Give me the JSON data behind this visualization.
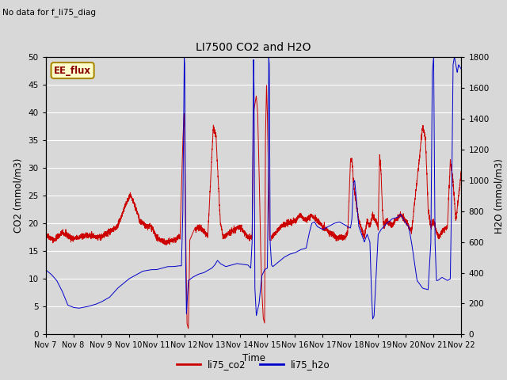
{
  "title": "LI7500 CO2 and H2O",
  "top_left_text": "No data for f_li75_diag",
  "box_label": "EE_flux",
  "xlabel": "Time",
  "ylabel_left": "CO2 (mmol/m3)",
  "ylabel_right": "H2O (mmol/m3)",
  "ylim_left": [
    0,
    50
  ],
  "ylim_right": [
    0,
    1800
  ],
  "x_start": 7,
  "x_end": 22,
  "x_ticks": [
    7,
    8,
    9,
    10,
    11,
    12,
    13,
    14,
    15,
    16,
    17,
    18,
    19,
    20,
    21,
    22
  ],
  "x_tick_labels": [
    "Nov 7",
    "Nov 8",
    "Nov 9",
    "Nov 10",
    "Nov 11",
    "Nov 12",
    "Nov 13",
    "Nov 14",
    "Nov 15",
    "Nov 16",
    "Nov 17",
    "Nov 18",
    "Nov 19",
    "Nov 20",
    "Nov 21",
    "Nov 22"
  ],
  "background_color": "#d8d8d8",
  "plot_bg_color": "#d8d8d8",
  "line_color_co2": "#cc0000",
  "line_color_h2o": "#0000cc",
  "legend_label_co2": "li75_co2",
  "legend_label_h2o": "li75_h2o",
  "grid_color": "#ffffff",
  "box_bg": "#ffffcc",
  "box_border": "#aa8800"
}
